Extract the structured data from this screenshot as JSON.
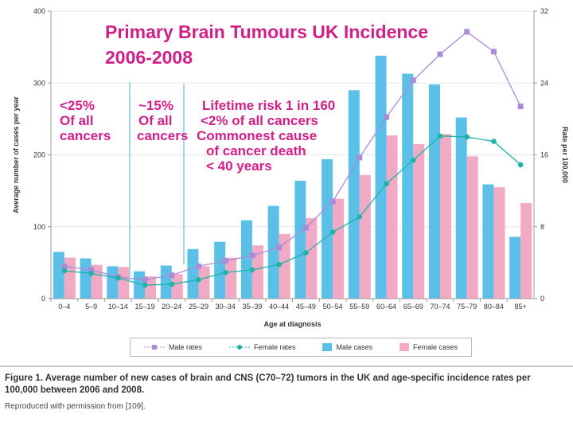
{
  "chart_data": {
    "type": "bar",
    "title": "Primary Brain Tumours UK Incidence",
    "subtitle": "2006-2008",
    "xlabel": "Age at diagnosis",
    "ylabel": "Average number of cases per year",
    "y2label": "Rate per 100,000",
    "ylim": [
      0,
      400
    ],
    "y2lim": [
      0,
      32
    ],
    "yticks": [
      "0",
      "100",
      "200",
      "300",
      "400"
    ],
    "y2ticks": [
      "0",
      "8",
      "16",
      "24",
      "32"
    ],
    "categories": [
      "0–4",
      "5–9",
      "10–14",
      "15–19",
      "20–24",
      "25–29",
      "30–34",
      "35–39",
      "40–44",
      "45–49",
      "50–54",
      "55–59",
      "60–64",
      "65–69",
      "70–74",
      "75–79",
      "80–84",
      "85+"
    ],
    "series": [
      {
        "name": "Male cases",
        "kind": "bar",
        "axis": "left",
        "color": "#5bc0e8",
        "values": [
          65,
          56,
          45,
          38,
          46,
          69,
          79,
          109,
          129,
          164,
          194,
          290,
          338,
          313,
          298,
          252,
          159,
          86
        ]
      },
      {
        "name": "Female cases",
        "kind": "bar",
        "axis": "left",
        "color": "#f2a9c4",
        "values": [
          57,
          47,
          44,
          31,
          34,
          45,
          57,
          74,
          90,
          112,
          139,
          172,
          227,
          215,
          229,
          198,
          155,
          133
        ]
      },
      {
        "name": "Male rates",
        "kind": "line",
        "axis": "right",
        "color": "#a98bd6",
        "values": [
          3.6,
          3.2,
          2.4,
          2.1,
          2.6,
          3.6,
          4.2,
          4.8,
          5.7,
          7.9,
          10.8,
          15.7,
          20.2,
          24.3,
          27.2,
          29.7,
          27.5,
          21.4
        ]
      },
      {
        "name": "Female rates",
        "kind": "line",
        "axis": "right",
        "color": "#1bb5a8",
        "values": [
          3.1,
          2.8,
          2.3,
          1.5,
          1.6,
          2.1,
          2.9,
          3.2,
          3.8,
          5.1,
          7.4,
          9.1,
          12.8,
          15.4,
          18.1,
          18.0,
          17.5,
          14.9
        ]
      }
    ],
    "legend_position": "bottom",
    "annotations": {
      "left": [
        "<25%",
        "Of all",
        "cancers"
      ],
      "middle": [
        "~15%",
        "Of all",
        "cancers"
      ],
      "right": [
        "Lifetime risk 1 in 160",
        "<2% of all cancers",
        "Commonest cause",
        "of cancer death",
        "< 40 years"
      ]
    }
  },
  "colors": {
    "annotation": "#d11f87",
    "axis": "#999999",
    "grid": "#e6e6e6",
    "divider_line": "#9fd7ea"
  },
  "legend": {
    "male_rates": "Male rates",
    "female_rates": "Female rates",
    "male_cases": "Male cases",
    "female_cases": "Female cases"
  },
  "caption": {
    "text": "Figure 1. Average number of new cases of brain and CNS (C70–72) tumors in the UK and age-specific incidence rates per 100,000 between 2006 and 2008.",
    "permission": "Reproduced with permission from [109]."
  }
}
